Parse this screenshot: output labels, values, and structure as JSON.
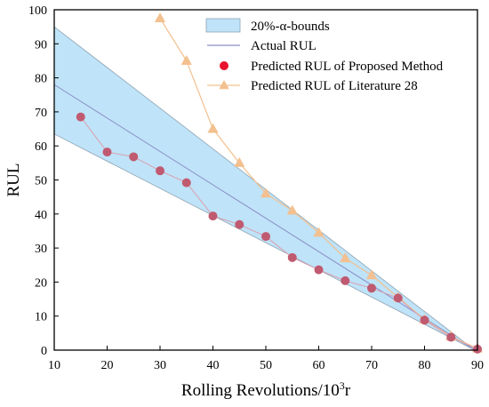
{
  "chart_data": {
    "type": "line",
    "title": "",
    "xlabel": "Rolling Revolutions/10",
    "xlabel_superscript": "3",
    "xlabel_suffix": "r",
    "ylabel": "RUL",
    "xlim": [
      10,
      90
    ],
    "ylim": [
      0,
      100
    ],
    "xticks": [
      "10",
      "20",
      "30",
      "40",
      "50",
      "60",
      "70",
      "80",
      "90"
    ],
    "yticks": [
      "0",
      "10",
      "20",
      "30",
      "40",
      "50",
      "60",
      "70",
      "80",
      "90",
      "100"
    ],
    "grid": false,
    "legend_position": "top-right",
    "bounds": {
      "name": "20%-α-bounds",
      "x": [
        10,
        89.5
      ],
      "upper": [
        95,
        0
      ],
      "lower": [
        63.5,
        0
      ]
    },
    "actual": {
      "name": "Actual RUL",
      "x": [
        10,
        89.5
      ],
      "y": [
        78,
        0
      ]
    },
    "series": [
      {
        "name": "Predicted RUL of Proposed Method",
        "marker": "circle",
        "x": [
          15,
          20,
          25,
          30,
          35,
          40,
          45,
          50,
          55,
          60,
          65,
          70,
          75,
          80,
          85,
          90
        ],
        "y": [
          68.5,
          58.2,
          56.8,
          52.7,
          49.2,
          39.4,
          36.9,
          33.4,
          27.2,
          23.6,
          20.4,
          18.2,
          15.3,
          8.8,
          3.8,
          0.3
        ]
      },
      {
        "name": "Predicted RUL of Literature 28",
        "marker": "triangle",
        "x": [
          30,
          35,
          40,
          45,
          50,
          55,
          60,
          65,
          70,
          75,
          80,
          85,
          90
        ],
        "y": [
          97.5,
          85,
          65,
          55,
          46,
          41,
          34.5,
          27,
          22,
          15.5,
          9,
          4,
          0.5
        ]
      }
    ]
  },
  "colors": {
    "band_fill": "#bfe3f8",
    "band_stroke": "#8ea3b2",
    "actual_line": "#8b8ec9",
    "proposed_marker": "#c05a70",
    "proposed_line": "#d9a0b0",
    "literature": "#f3c08f",
    "legend_circle": "#e8112d"
  }
}
